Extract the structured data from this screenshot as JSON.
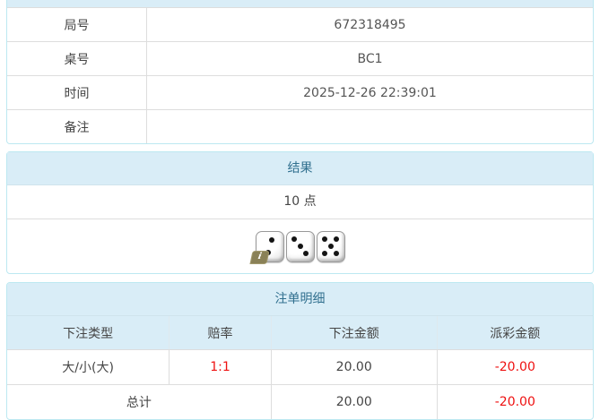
{
  "colors": {
    "panel_border": "#bce8f1",
    "heading_bg": "#d9edf7",
    "heading_text": "#31708f",
    "row_border": "#dddddd",
    "body_text": "#454545",
    "negative_text": "#ee1111",
    "badge_bg": "#8a8157"
  },
  "info_table": {
    "rows": [
      {
        "label": "局号",
        "value": "672318495"
      },
      {
        "label": "桌号",
        "value": "BC1"
      },
      {
        "label": "时间",
        "value": "2025-12-26 22:39:01"
      },
      {
        "label": "备注",
        "value": ""
      }
    ]
  },
  "result_panel": {
    "title": "结果",
    "points": "10 点",
    "dice": [
      2,
      3,
      5
    ],
    "info_badge": "i"
  },
  "bets_panel": {
    "title": "注单明细",
    "columns": [
      "下注类型",
      "赔率",
      "下注金额",
      "派彩金额"
    ],
    "rows": [
      {
        "type": "大/小(大)",
        "odds": "1:1",
        "bet": "20.00",
        "payout": "-20.00"
      }
    ],
    "total": {
      "label": "总计",
      "bet": "20.00",
      "payout": "-20.00"
    }
  }
}
